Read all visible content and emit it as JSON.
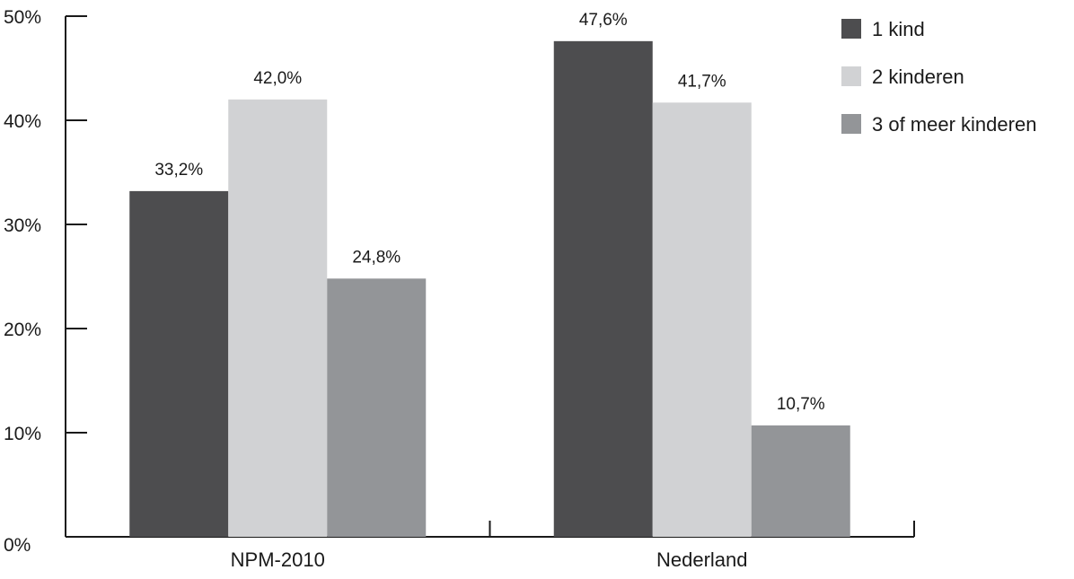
{
  "chart_data": {
    "type": "bar",
    "title": "",
    "xlabel": "",
    "ylabel": "",
    "categories": [
      "NPM-2010",
      "Nederland"
    ],
    "series": [
      {
        "name": "1 kind",
        "values": [
          33.2,
          47.6
        ],
        "labels": [
          "33,2%",
          "47,6%"
        ],
        "color": "#4d4d4f"
      },
      {
        "name": "2 kinderen",
        "values": [
          42.0,
          41.7
        ],
        "labels": [
          "42,0%",
          "41,7%"
        ],
        "color": "#d1d2d4"
      },
      {
        "name": "3 of meer kinderen",
        "values": [
          24.8,
          10.7
        ],
        "labels": [
          "24,8%",
          "10,7%"
        ],
        "color": "#939598"
      }
    ],
    "ylim": [
      0,
      50
    ],
    "yticks": [
      0,
      10,
      20,
      30,
      40,
      50
    ],
    "ytick_labels": [
      "0%",
      "10%",
      "20%",
      "30%",
      "40%",
      "50%"
    ],
    "grid": false,
    "legend": "top-right",
    "axis_color": "#1a1a1a"
  }
}
